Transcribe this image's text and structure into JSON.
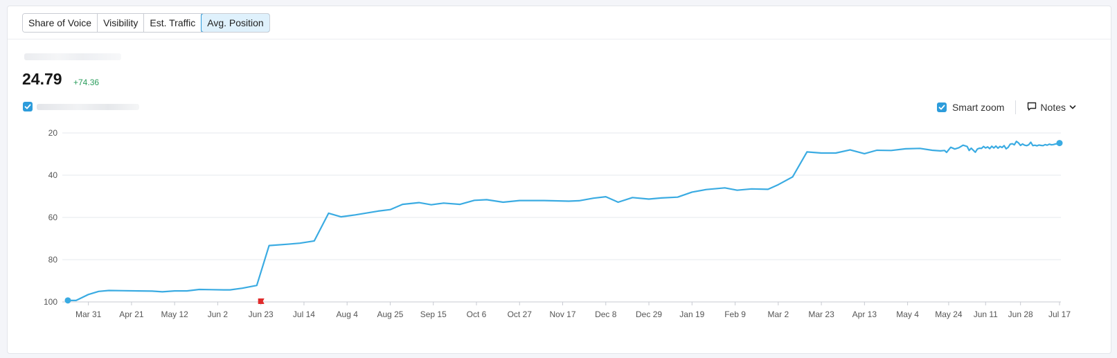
{
  "tabs": [
    {
      "label": "Share of Voice"
    },
    {
      "label": "Visibility"
    },
    {
      "label": "Est. Traffic"
    },
    {
      "label": "Avg. Position",
      "active": true
    }
  ],
  "metric": {
    "value": "24.79",
    "delta": "+74.36"
  },
  "controls": {
    "smart_zoom_label": "Smart zoom",
    "notes_label": "Notes"
  },
  "colors": {
    "line": "#3aabe2",
    "accent": "#2d9cdb",
    "note_flag": "#e02b2b",
    "grid": "#e6e8ec"
  },
  "chart_data": {
    "type": "line",
    "y_inverted": true,
    "ylim": [
      20,
      100
    ],
    "y_ticks": [
      20,
      40,
      60,
      80,
      100
    ],
    "xlim": [
      "2024-03-21",
      "2025-07-17"
    ],
    "x_ticks": [
      {
        "date": "2024-03-31",
        "label": "Mar 31"
      },
      {
        "date": "2024-04-21",
        "label": "Apr 21"
      },
      {
        "date": "2024-05-12",
        "label": "May 12"
      },
      {
        "date": "2024-06-02",
        "label": "Jun 2"
      },
      {
        "date": "2024-06-23",
        "label": "Jun 23"
      },
      {
        "date": "2024-07-14",
        "label": "Jul 14"
      },
      {
        "date": "2024-08-04",
        "label": "Aug 4"
      },
      {
        "date": "2024-08-25",
        "label": "Aug 25"
      },
      {
        "date": "2024-09-15",
        "label": "Sep 15"
      },
      {
        "date": "2024-10-06",
        "label": "Oct 6"
      },
      {
        "date": "2024-10-27",
        "label": "Oct 27"
      },
      {
        "date": "2024-11-17",
        "label": "Nov 17"
      },
      {
        "date": "2024-12-08",
        "label": "Dec 8"
      },
      {
        "date": "2024-12-29",
        "label": "Dec 29"
      },
      {
        "date": "2025-01-19",
        "label": "Jan 19"
      },
      {
        "date": "2025-02-09",
        "label": "Feb 9"
      },
      {
        "date": "2025-03-02",
        "label": "Mar 2"
      },
      {
        "date": "2025-03-23",
        "label": "Mar 23"
      },
      {
        "date": "2025-04-13",
        "label": "Apr 13"
      },
      {
        "date": "2025-05-04",
        "label": "May 4"
      },
      {
        "date": "2025-05-24",
        "label": "May 24"
      },
      {
        "date": "2025-06-11",
        "label": "Jun 11"
      },
      {
        "date": "2025-06-28",
        "label": "Jun 28"
      },
      {
        "date": "2025-07-17",
        "label": "Jul 17"
      }
    ],
    "note_markers": [
      "2024-06-23"
    ],
    "series": [
      {
        "points": [
          [
            "2024-03-21",
            99.3
          ],
          [
            "2024-03-25",
            99.3
          ],
          [
            "2024-03-31",
            96.5
          ],
          [
            "2024-04-05",
            95.0
          ],
          [
            "2024-04-10",
            94.6
          ],
          [
            "2024-04-17",
            94.7
          ],
          [
            "2024-04-24",
            94.8
          ],
          [
            "2024-05-01",
            94.9
          ],
          [
            "2024-05-06",
            95.2
          ],
          [
            "2024-05-12",
            94.8
          ],
          [
            "2024-05-18",
            94.8
          ],
          [
            "2024-05-24",
            94.1
          ],
          [
            "2024-05-30",
            94.2
          ],
          [
            "2024-06-05",
            94.3
          ],
          [
            "2024-06-08",
            94.3
          ],
          [
            "2024-06-14",
            93.5
          ],
          [
            "2024-06-21",
            92.2
          ],
          [
            "2024-06-27",
            73.3
          ],
          [
            "2024-07-06",
            72.7
          ],
          [
            "2024-07-12",
            72.2
          ],
          [
            "2024-07-19",
            71.1
          ],
          [
            "2024-07-26",
            58.0
          ],
          [
            "2024-08-01",
            59.7
          ],
          [
            "2024-08-08",
            58.8
          ],
          [
            "2024-08-19",
            57.0
          ],
          [
            "2024-08-25",
            56.3
          ],
          [
            "2024-08-31",
            53.8
          ],
          [
            "2024-09-08",
            53.0
          ],
          [
            "2024-09-14",
            54.0
          ],
          [
            "2024-09-20",
            53.2
          ],
          [
            "2024-09-28",
            53.8
          ],
          [
            "2024-10-05",
            51.9
          ],
          [
            "2024-10-11",
            51.6
          ],
          [
            "2024-10-19",
            52.8
          ],
          [
            "2024-10-27",
            52.0
          ],
          [
            "2024-11-08",
            52.0
          ],
          [
            "2024-11-20",
            52.3
          ],
          [
            "2024-11-25",
            52.1
          ],
          [
            "2024-12-02",
            50.9
          ],
          [
            "2024-12-08",
            50.2
          ],
          [
            "2024-12-14",
            52.8
          ],
          [
            "2024-12-21",
            50.6
          ],
          [
            "2024-12-29",
            51.3
          ],
          [
            "2025-01-04",
            50.8
          ],
          [
            "2025-01-12",
            50.4
          ],
          [
            "2025-01-19",
            48.0
          ],
          [
            "2025-01-26",
            46.8
          ],
          [
            "2025-02-04",
            46.0
          ],
          [
            "2025-02-10",
            47.1
          ],
          [
            "2025-02-17",
            46.5
          ],
          [
            "2025-02-25",
            46.7
          ],
          [
            "2025-03-02",
            44.5
          ],
          [
            "2025-03-09",
            40.8
          ],
          [
            "2025-03-16",
            29.0
          ],
          [
            "2025-03-23",
            29.5
          ],
          [
            "2025-03-30",
            29.5
          ],
          [
            "2025-04-06",
            28.0
          ],
          [
            "2025-04-13",
            29.8
          ],
          [
            "2025-04-19",
            28.2
          ],
          [
            "2025-04-26",
            28.3
          ],
          [
            "2025-05-03",
            27.5
          ],
          [
            "2025-05-10",
            27.3
          ],
          [
            "2025-05-16",
            28.2
          ],
          [
            "2025-05-20",
            28.5
          ],
          [
            "2025-05-22",
            28.3
          ],
          [
            "2025-05-23",
            29.2
          ],
          [
            "2025-05-25",
            26.8
          ],
          [
            "2025-05-27",
            27.6
          ],
          [
            "2025-05-29",
            27.0
          ],
          [
            "2025-05-31",
            25.8
          ],
          [
            "2025-06-02",
            26.4
          ],
          [
            "2025-06-03",
            28.3
          ],
          [
            "2025-06-04",
            27.2
          ],
          [
            "2025-06-05",
            28.2
          ],
          [
            "2025-06-06",
            29.1
          ],
          [
            "2025-06-07",
            27.6
          ],
          [
            "2025-06-08",
            27.2
          ],
          [
            "2025-06-09",
            27.3
          ],
          [
            "2025-06-10",
            26.4
          ],
          [
            "2025-06-11",
            27.1
          ],
          [
            "2025-06-12",
            26.6
          ],
          [
            "2025-06-13",
            27.4
          ],
          [
            "2025-06-14",
            26.3
          ],
          [
            "2025-06-15",
            27.1
          ],
          [
            "2025-06-16",
            26.2
          ],
          [
            "2025-06-17",
            27.2
          ],
          [
            "2025-06-18",
            26.4
          ],
          [
            "2025-06-19",
            26.9
          ],
          [
            "2025-06-20",
            26.0
          ],
          [
            "2025-06-21",
            27.5
          ],
          [
            "2025-06-22",
            26.8
          ],
          [
            "2025-06-23",
            25.3
          ],
          [
            "2025-06-24",
            25.1
          ],
          [
            "2025-06-25",
            25.6
          ],
          [
            "2025-06-26",
            24.0
          ],
          [
            "2025-06-27",
            24.7
          ],
          [
            "2025-06-28",
            25.9
          ],
          [
            "2025-06-29",
            25.2
          ],
          [
            "2025-06-30",
            25.8
          ],
          [
            "2025-07-01",
            26.0
          ],
          [
            "2025-07-02",
            25.6
          ],
          [
            "2025-07-03",
            24.4
          ],
          [
            "2025-07-04",
            26.0
          ],
          [
            "2025-07-05",
            25.8
          ],
          [
            "2025-07-06",
            26.1
          ],
          [
            "2025-07-07",
            25.7
          ],
          [
            "2025-07-08",
            25.9
          ],
          [
            "2025-07-09",
            26.0
          ],
          [
            "2025-07-10",
            25.5
          ],
          [
            "2025-07-11",
            25.8
          ],
          [
            "2025-07-12",
            25.3
          ],
          [
            "2025-07-13",
            25.6
          ],
          [
            "2025-07-14",
            25.5
          ],
          [
            "2025-07-15",
            25.2
          ],
          [
            "2025-07-16",
            25.1
          ],
          [
            "2025-07-17",
            24.79
          ]
        ]
      }
    ]
  }
}
